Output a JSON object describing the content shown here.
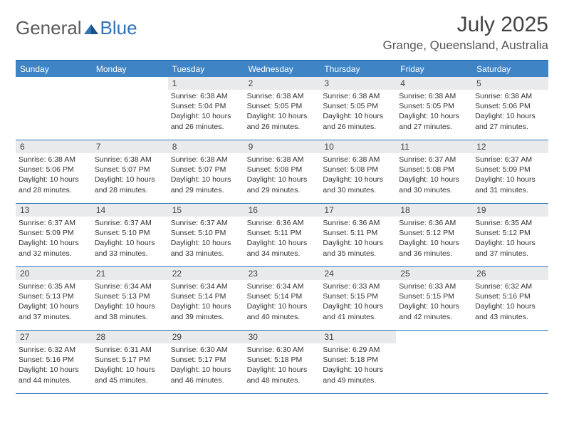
{
  "logo": {
    "text1": "General",
    "text2": "Blue"
  },
  "title": "July 2025",
  "location": "Grange, Queensland, Australia",
  "colors": {
    "header_bg": "#3f84c4",
    "border": "#2e72b8",
    "daynum_bg": "#e9eaec",
    "text": "#333333",
    "title_text": "#444444"
  },
  "weekdays": [
    "Sunday",
    "Monday",
    "Tuesday",
    "Wednesday",
    "Thursday",
    "Friday",
    "Saturday"
  ],
  "weeks": [
    [
      {
        "n": "",
        "l": []
      },
      {
        "n": "",
        "l": []
      },
      {
        "n": "1",
        "l": [
          "Sunrise: 6:38 AM",
          "Sunset: 5:04 PM",
          "Daylight: 10 hours",
          "and 26 minutes."
        ]
      },
      {
        "n": "2",
        "l": [
          "Sunrise: 6:38 AM",
          "Sunset: 5:05 PM",
          "Daylight: 10 hours",
          "and 26 minutes."
        ]
      },
      {
        "n": "3",
        "l": [
          "Sunrise: 6:38 AM",
          "Sunset: 5:05 PM",
          "Daylight: 10 hours",
          "and 26 minutes."
        ]
      },
      {
        "n": "4",
        "l": [
          "Sunrise: 6:38 AM",
          "Sunset: 5:05 PM",
          "Daylight: 10 hours",
          "and 27 minutes."
        ]
      },
      {
        "n": "5",
        "l": [
          "Sunrise: 6:38 AM",
          "Sunset: 5:06 PM",
          "Daylight: 10 hours",
          "and 27 minutes."
        ]
      }
    ],
    [
      {
        "n": "6",
        "l": [
          "Sunrise: 6:38 AM",
          "Sunset: 5:06 PM",
          "Daylight: 10 hours",
          "and 28 minutes."
        ]
      },
      {
        "n": "7",
        "l": [
          "Sunrise: 6:38 AM",
          "Sunset: 5:07 PM",
          "Daylight: 10 hours",
          "and 28 minutes."
        ]
      },
      {
        "n": "8",
        "l": [
          "Sunrise: 6:38 AM",
          "Sunset: 5:07 PM",
          "Daylight: 10 hours",
          "and 29 minutes."
        ]
      },
      {
        "n": "9",
        "l": [
          "Sunrise: 6:38 AM",
          "Sunset: 5:08 PM",
          "Daylight: 10 hours",
          "and 29 minutes."
        ]
      },
      {
        "n": "10",
        "l": [
          "Sunrise: 6:38 AM",
          "Sunset: 5:08 PM",
          "Daylight: 10 hours",
          "and 30 minutes."
        ]
      },
      {
        "n": "11",
        "l": [
          "Sunrise: 6:37 AM",
          "Sunset: 5:08 PM",
          "Daylight: 10 hours",
          "and 30 minutes."
        ]
      },
      {
        "n": "12",
        "l": [
          "Sunrise: 6:37 AM",
          "Sunset: 5:09 PM",
          "Daylight: 10 hours",
          "and 31 minutes."
        ]
      }
    ],
    [
      {
        "n": "13",
        "l": [
          "Sunrise: 6:37 AM",
          "Sunset: 5:09 PM",
          "Daylight: 10 hours",
          "and 32 minutes."
        ]
      },
      {
        "n": "14",
        "l": [
          "Sunrise: 6:37 AM",
          "Sunset: 5:10 PM",
          "Daylight: 10 hours",
          "and 33 minutes."
        ]
      },
      {
        "n": "15",
        "l": [
          "Sunrise: 6:37 AM",
          "Sunset: 5:10 PM",
          "Daylight: 10 hours",
          "and 33 minutes."
        ]
      },
      {
        "n": "16",
        "l": [
          "Sunrise: 6:36 AM",
          "Sunset: 5:11 PM",
          "Daylight: 10 hours",
          "and 34 minutes."
        ]
      },
      {
        "n": "17",
        "l": [
          "Sunrise: 6:36 AM",
          "Sunset: 5:11 PM",
          "Daylight: 10 hours",
          "and 35 minutes."
        ]
      },
      {
        "n": "18",
        "l": [
          "Sunrise: 6:36 AM",
          "Sunset: 5:12 PM",
          "Daylight: 10 hours",
          "and 36 minutes."
        ]
      },
      {
        "n": "19",
        "l": [
          "Sunrise: 6:35 AM",
          "Sunset: 5:12 PM",
          "Daylight: 10 hours",
          "and 37 minutes."
        ]
      }
    ],
    [
      {
        "n": "20",
        "l": [
          "Sunrise: 6:35 AM",
          "Sunset: 5:13 PM",
          "Daylight: 10 hours",
          "and 37 minutes."
        ]
      },
      {
        "n": "21",
        "l": [
          "Sunrise: 6:34 AM",
          "Sunset: 5:13 PM",
          "Daylight: 10 hours",
          "and 38 minutes."
        ]
      },
      {
        "n": "22",
        "l": [
          "Sunrise: 6:34 AM",
          "Sunset: 5:14 PM",
          "Daylight: 10 hours",
          "and 39 minutes."
        ]
      },
      {
        "n": "23",
        "l": [
          "Sunrise: 6:34 AM",
          "Sunset: 5:14 PM",
          "Daylight: 10 hours",
          "and 40 minutes."
        ]
      },
      {
        "n": "24",
        "l": [
          "Sunrise: 6:33 AM",
          "Sunset: 5:15 PM",
          "Daylight: 10 hours",
          "and 41 minutes."
        ]
      },
      {
        "n": "25",
        "l": [
          "Sunrise: 6:33 AM",
          "Sunset: 5:15 PM",
          "Daylight: 10 hours",
          "and 42 minutes."
        ]
      },
      {
        "n": "26",
        "l": [
          "Sunrise: 6:32 AM",
          "Sunset: 5:16 PM",
          "Daylight: 10 hours",
          "and 43 minutes."
        ]
      }
    ],
    [
      {
        "n": "27",
        "l": [
          "Sunrise: 6:32 AM",
          "Sunset: 5:16 PM",
          "Daylight: 10 hours",
          "and 44 minutes."
        ]
      },
      {
        "n": "28",
        "l": [
          "Sunrise: 6:31 AM",
          "Sunset: 5:17 PM",
          "Daylight: 10 hours",
          "and 45 minutes."
        ]
      },
      {
        "n": "29",
        "l": [
          "Sunrise: 6:30 AM",
          "Sunset: 5:17 PM",
          "Daylight: 10 hours",
          "and 46 minutes."
        ]
      },
      {
        "n": "30",
        "l": [
          "Sunrise: 6:30 AM",
          "Sunset: 5:18 PM",
          "Daylight: 10 hours",
          "and 48 minutes."
        ]
      },
      {
        "n": "31",
        "l": [
          "Sunrise: 6:29 AM",
          "Sunset: 5:18 PM",
          "Daylight: 10 hours",
          "and 49 minutes."
        ]
      },
      {
        "n": "",
        "l": []
      },
      {
        "n": "",
        "l": []
      }
    ]
  ]
}
